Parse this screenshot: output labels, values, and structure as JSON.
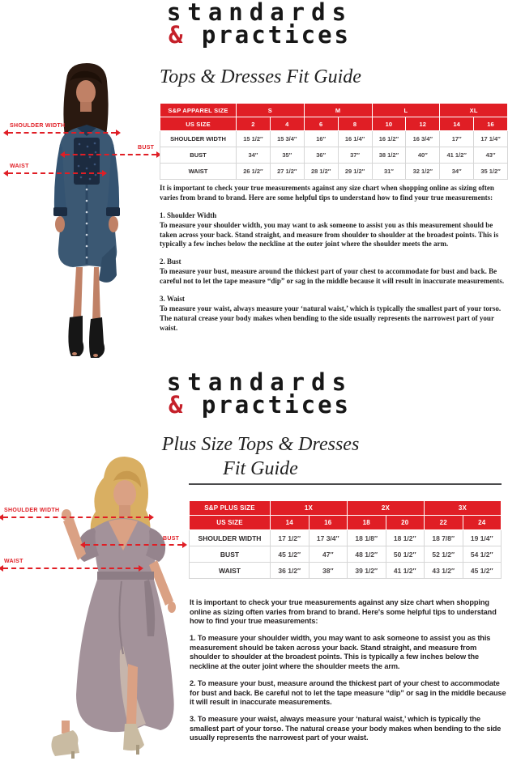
{
  "colors": {
    "accent_red": "#e01e25",
    "logo_amp_red": "#c5202a"
  },
  "s1": {
    "logo": {
      "line1": "standards",
      "amp": "&",
      "line2": " practices"
    },
    "title": "Tops & Dresses Fit Guide",
    "labels": {
      "shoulder": "SHOULDER WIDTH",
      "bust": "BUST",
      "waist": "WAIST"
    },
    "table": {
      "corner_label": "S&P APPAREL SIZE",
      "us_size_label": "US SIZE",
      "size_groups": [
        "S",
        "M",
        "L",
        "XL"
      ],
      "us_sizes": [
        "2",
        "4",
        "6",
        "8",
        "10",
        "12",
        "14",
        "16"
      ],
      "rows": [
        {
          "label": "SHOULDER WIDTH",
          "values": [
            "15 1/2″",
            "15 3/4″",
            "16″",
            "16 1/4″",
            "16 1/2″",
            "16 3/4″",
            "17″",
            "17 1/4″"
          ]
        },
        {
          "label": "BUST",
          "values": [
            "34″",
            "35″",
            "36″",
            "37″",
            "38 1/2″",
            "40″",
            "41 1/2″",
            "43″"
          ]
        },
        {
          "label": "WAIST",
          "values": [
            "26 1/2″",
            "27 1/2″",
            "28 1/2″",
            "29 1/2″",
            "31″",
            "32 1/2″",
            "34″",
            "35 1/2″"
          ]
        }
      ]
    },
    "body": {
      "intro": "It is important to check your true measurements against any size chart when shopping online as sizing often varies from brand to brand. Here are some helpful tips to understand how to find your true measurements:",
      "items": [
        {
          "heading": "1. Shoulder Width",
          "text": "To measure your shoulder width, you may want to ask someone to assist you as this measurement should be taken across your back. Stand straight, and measure from shoulder to shoulder at the broadest points. This is typically a few inches below the neckline at the outer joint where the shoulder meets the arm."
        },
        {
          "heading": "2. Bust",
          "text": "To measure your bust, measure around the thickest part of your chest to accommodate for bust and back. Be careful not to let the tape measure “dip” or sag in the middle because it will result in inaccurate measurements."
        },
        {
          "heading": "3. Waist",
          "text": "To measure your waist, always measure your ‘natural waist,’ which is typically the smallest part of your torso.  The natural crease your body makes when bending to the side usually represents the narrowest part of your waist."
        }
      ]
    }
  },
  "s2": {
    "logo": {
      "line1": "standards",
      "amp": "&",
      "line2": " practices"
    },
    "title_line1": "Plus Size Tops & Dresses",
    "title_line2": "Fit Guide",
    "labels": {
      "shoulder": "SHOULDER WIDTH",
      "bust": "BUST",
      "waist": "WAIST"
    },
    "table": {
      "corner_label": "S&P PLUS SIZE",
      "us_size_label": "US SIZE",
      "size_groups": [
        "1X",
        "2X",
        "3X"
      ],
      "us_sizes": [
        "14",
        "16",
        "18",
        "20",
        "22",
        "24"
      ],
      "rows": [
        {
          "label": "SHOULDER WIDTH",
          "values": [
            "17 1/2″",
            "17 3/4″",
            "18 1/8″",
            "18 1/2″",
            "18 7/8″",
            "19 1/4″"
          ]
        },
        {
          "label": "BUST",
          "values": [
            "45 1/2″",
            "47″",
            "48 1/2″",
            "50 1/2″",
            "52 1/2″",
            "54 1/2″"
          ]
        },
        {
          "label": "WAIST",
          "values": [
            "36 1/2″",
            "38″",
            "39 1/2″",
            "41 1/2″",
            "43 1/2″",
            "45 1/2″"
          ]
        }
      ]
    },
    "body": {
      "intro": "It is important to check your true measurements against any size chart when shopping online as sizing often varies from brand to brand. Here's some helpful tips to understand how to find your true measurements:",
      "items": [
        {
          "text": "1. To measure your shoulder width, you may want to ask someone to assist you as this measurement should be taken across your back. Stand straight, and measure from shoulder to shoulder at the broadest points. This is typically a few inches below the neckline at the outer joint where the shoulder meets the arm."
        },
        {
          "text": "2. To measure your bust, measure around the thickest part of your chest to accommodate for bust and back. Be careful not to let the tape measure “dip” or sag in the middle because it will result in inaccurate measurements."
        },
        {
          "text": "3. To measure your waist, always measure your ‘natural waist,’ which is typically the smallest part of your torso. The natural crease your body makes when bending to the side usually represents the narrowest part of your waist."
        }
      ]
    }
  }
}
